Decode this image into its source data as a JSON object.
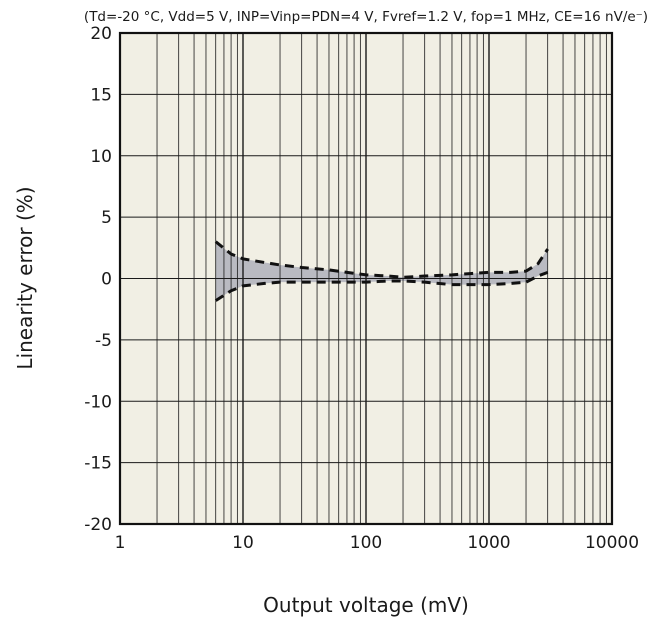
{
  "chart_data": {
    "type": "area",
    "title": "(Td=-20 °C, Vdd=5 V, INP=Vinp=PDN=4 V, Fvref=1.2 V, fop=1 MHz, CE=16 nV/e⁻)",
    "xlabel": "Output voltage (mV)",
    "ylabel": "Linearity error (%)",
    "x_scale": "log",
    "xlim": [
      1,
      10000
    ],
    "ylim": [
      -20,
      20
    ],
    "x_ticks": [
      1,
      10,
      100,
      1000,
      10000
    ],
    "x_tick_labels": [
      "1",
      "10",
      "100",
      "1000",
      "10000"
    ],
    "y_ticks": [
      20,
      15,
      10,
      5,
      0,
      -5,
      -10,
      -15,
      -20
    ],
    "y_tick_labels": [
      "20",
      "15",
      "10",
      "5",
      "0",
      "-5",
      "-10",
      "-15",
      "-20"
    ],
    "grid": true,
    "colors": {
      "plot_background": "#f1efe4",
      "band_fill": "#b9bac1",
      "grid": "#1a1a1a",
      "boundary": "#111111"
    },
    "series": [
      {
        "role": "upper",
        "x": [
          6,
          8,
          10,
          15,
          20,
          30,
          50,
          70,
          100,
          150,
          200,
          300,
          500,
          700,
          1000,
          1500,
          2000,
          2500,
          3000
        ],
        "values": [
          3.0,
          2.0,
          1.6,
          1.3,
          1.1,
          0.9,
          0.7,
          0.5,
          0.3,
          0.2,
          0.1,
          0.2,
          0.3,
          0.4,
          0.5,
          0.5,
          0.6,
          1.2,
          2.4
        ]
      },
      {
        "role": "lower",
        "x": [
          6,
          8,
          10,
          15,
          20,
          30,
          50,
          70,
          100,
          150,
          200,
          300,
          500,
          700,
          1000,
          1500,
          2000,
          2500,
          3000
        ],
        "values": [
          -1.8,
          -1.0,
          -0.6,
          -0.4,
          -0.3,
          -0.3,
          -0.3,
          -0.3,
          -0.3,
          -0.2,
          -0.2,
          -0.3,
          -0.5,
          -0.5,
          -0.5,
          -0.4,
          -0.3,
          0.2,
          0.5
        ]
      }
    ]
  }
}
